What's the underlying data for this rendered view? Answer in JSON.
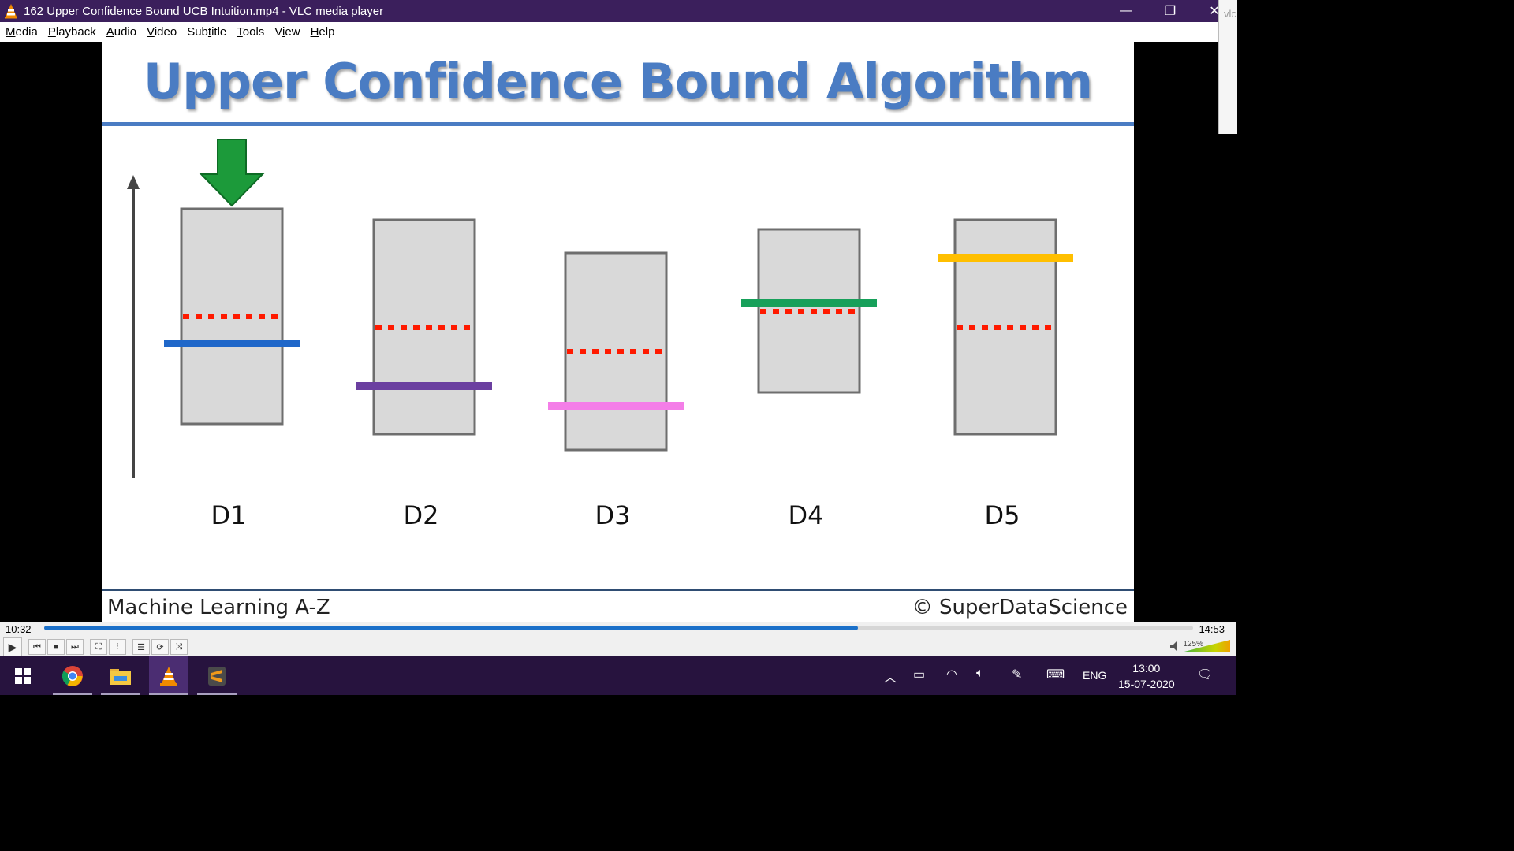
{
  "window": {
    "title": "162 Upper Confidence Bound UCB Intuition.mp4 - VLC media player",
    "controls": [
      "—",
      "❐",
      "✕"
    ]
  },
  "menu": [
    {
      "label": "Media",
      "accel": "M",
      "rest": "edia"
    },
    {
      "label": "Playback",
      "accel": "P",
      "rest": "layback"
    },
    {
      "label": "Audio",
      "accel": "A",
      "rest": "udio"
    },
    {
      "label": "Video",
      "accel": "V",
      "rest": "ideo"
    },
    {
      "label": "Subtitle",
      "accel": "t",
      "pre": "Sub",
      "rest": "itle"
    },
    {
      "label": "Tools",
      "accel": "T",
      "rest": "ools"
    },
    {
      "label": "View",
      "accel": "i",
      "pre": "V",
      "rest": "ew"
    },
    {
      "label": "Help",
      "accel": "H",
      "rest": "elp"
    }
  ],
  "side_window": {
    "text": "vlc"
  },
  "slide": {
    "title": "Upper Confidence Bound Algorithm",
    "footer_left": "Machine Learning A-Z",
    "footer_right": "© SuperDataScience",
    "machines": [
      {
        "label": "D1",
        "color": "#1f67c9",
        "selected": true
      },
      {
        "label": "D2",
        "color": "#6b3fa0",
        "selected": false
      },
      {
        "label": "D3",
        "color": "#f47ee8",
        "selected": false
      },
      {
        "label": "D4",
        "color": "#17a05a",
        "selected": false
      },
      {
        "label": "D5",
        "color": "#ffbf00",
        "selected": false
      }
    ],
    "arrow_color": "#1c9a3a",
    "dotted_color": "#ff1a00"
  },
  "player": {
    "time_elapsed": "10:32",
    "time_total": "14:53",
    "progress": 0.708,
    "volume": "125%"
  },
  "taskbar": {
    "apps": [
      "windows-start",
      "chrome",
      "file-explorer",
      "vlc",
      "sublime-text"
    ],
    "language": "ENG",
    "time": "13:00",
    "date": "15-07-2020"
  }
}
